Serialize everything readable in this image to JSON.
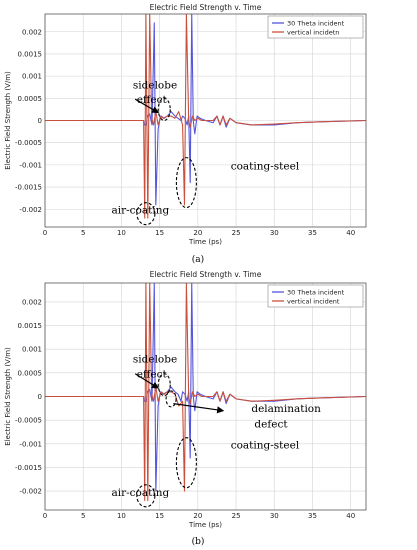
{
  "chart_data": [
    {
      "type": "line",
      "title": "Electric Field Strength v. Time",
      "xlabel": "Time (ps)",
      "ylabel": "Electric Field Strength (V/m)",
      "xlim": [
        0,
        42
      ],
      "ylim": [
        -0.0024,
        0.0024
      ],
      "xticks": [
        0,
        5,
        10,
        15,
        20,
        25,
        30,
        35,
        40
      ],
      "yticks": [
        0.002,
        0.0015,
        0.001,
        0.0005,
        0,
        -0.0005,
        -0.001,
        -0.0015,
        -0.002
      ],
      "ytick_labels": [
        "0.002",
        "0.0015",
        "0.001",
        "0.0005",
        "0",
        "-0.0005",
        "-0.001",
        "-0.0015",
        "-0.002"
      ],
      "grid": true,
      "legend_position": "top-right",
      "legend": [
        "30 Theta incident",
        "vertical incidetn"
      ],
      "series": [
        {
          "name": "30 Theta incident",
          "color": "#5555dd",
          "x": [
            0,
            12.9,
            13.0,
            13.25,
            13.4,
            13.7,
            14.0,
            14.3,
            14.5,
            14.8,
            15.1,
            15.5,
            16.0,
            16.5,
            17.0,
            17.4,
            17.8,
            18.0,
            18.3,
            18.6,
            18.8,
            19.0,
            19.2,
            19.4,
            19.6,
            19.9,
            20.3,
            21.0,
            22.0,
            22.5,
            22.9,
            23.3,
            23.7,
            24.2,
            25,
            27,
            30,
            33,
            36,
            42
          ],
          "y": [
            0,
            0,
            -0.0001,
            -0.0001,
            0.0001,
            0.00015,
            -0.0001,
            0.0022,
            -0.0019,
            -0.0002,
            0.0001,
            5e-05,
            0.0001,
            0.0002,
            0.0001,
            5e-05,
            0,
            0.0001,
            5e-05,
            -0.0001,
            0.0001,
            -0.0014,
            0.0024,
            0.0,
            -0.0003,
            0.0001,
            5e-05,
            0,
            -5e-05,
            0.0001,
            -0.0001,
            0.0001,
            -0.00015,
            5e-05,
            -5e-05,
            -0.0001,
            -0.0001,
            -5e-05,
            -3e-05,
            0
          ]
        },
        {
          "name": "vertical incidetn",
          "color": "#c8503c",
          "x": [
            0,
            12.9,
            13.05,
            13.2,
            13.45,
            13.7,
            13.95,
            14.2,
            14.5,
            14.8,
            15.2,
            15.6,
            16.0,
            16.5,
            17.0,
            17.5,
            18.0,
            18.25,
            18.5,
            18.8,
            19.0,
            19.3,
            19.6,
            20.0,
            20.5,
            21.0,
            22.0,
            22.5,
            22.9,
            23.3,
            23.7,
            24.2,
            25,
            27,
            30,
            33,
            36,
            42
          ],
          "y": [
            0,
            0,
            -0.0022,
            0.0024,
            -0.0022,
            0.0024,
            5e-05,
            -0.0001,
            0.0002,
            -0.0001,
            0.0001,
            5e-05,
            0.0001,
            0.0001,
            5e-05,
            0.0002,
            -0.0001,
            -0.0019,
            0.0024,
            0.0,
            -0.00015,
            0.0001,
            0.0,
            5e-05,
            0,
            0,
            0,
            0.0001,
            -0.0001,
            0.0001,
            -0.0001,
            5e-05,
            -5e-05,
            -0.0001,
            -8e-05,
            -5e-05,
            -3e-05,
            0
          ]
        }
      ],
      "annotations": [
        {
          "text": "sidelobe",
          "x": 11.5,
          "y": 0.00072
        },
        {
          "text": "effect",
          "x": 12.0,
          "y": 0.0004
        },
        {
          "text": "coating-steel",
          "x": 24.3,
          "y": -0.0011
        },
        {
          "text": "air-coating",
          "x": 8.7,
          "y": -0.0021
        }
      ],
      "caption": "(a)"
    },
    {
      "type": "line",
      "title": "Electric Field Strength v. Time",
      "xlabel": "Time (ps)",
      "ylabel": "Electric Field Strength (V/m)",
      "xlim": [
        0,
        42
      ],
      "ylim": [
        -0.0024,
        0.0024
      ],
      "xticks": [
        0,
        5,
        10,
        15,
        20,
        25,
        30,
        35,
        40
      ],
      "yticks": [
        0.002,
        0.0015,
        0.001,
        0.0005,
        0,
        -0.0005,
        -0.001,
        -0.0015,
        -0.002
      ],
      "ytick_labels": [
        "0.002",
        "0.0015",
        "0.001",
        "0.0005",
        "0",
        "-0.0005",
        "-0.001",
        "-0.0015",
        "-0.002"
      ],
      "grid": true,
      "legend_position": "top-right",
      "legend": [
        "30 Theta incident",
        "vertical incident"
      ],
      "series": [
        {
          "name": "30 Theta incident",
          "color": "#5555dd",
          "x": [
            0,
            12.9,
            13.0,
            13.25,
            13.4,
            13.7,
            14.0,
            14.3,
            14.5,
            14.8,
            15.1,
            15.5,
            16.0,
            16.5,
            17.0,
            17.4,
            17.8,
            18.0,
            18.3,
            18.6,
            18.8,
            19.0,
            19.2,
            19.4,
            19.6,
            19.9,
            20.3,
            21.0,
            22.0,
            22.5,
            22.9,
            23.3,
            23.7,
            24.2,
            25,
            27,
            30,
            33,
            36,
            42
          ],
          "y": [
            0,
            0,
            -0.0001,
            -0.0001,
            0.0001,
            0.00015,
            -0.0001,
            0.0024,
            -0.002,
            -0.0002,
            0.0001,
            5e-05,
            0.0001,
            0.0002,
            0.0001,
            5e-05,
            -0.0001,
            0.0001,
            5e-05,
            -0.0001,
            0.0001,
            -0.0013,
            0.0024,
            0.0,
            -0.0003,
            0.0001,
            5e-05,
            0,
            -5e-05,
            0.0001,
            -0.0001,
            0.0001,
            -0.00015,
            5e-05,
            -5e-05,
            -0.0001,
            -0.0001,
            -5e-05,
            -3e-05,
            0
          ]
        },
        {
          "name": "vertical incident",
          "color": "#c8503c",
          "x": [
            0,
            12.9,
            13.05,
            13.2,
            13.45,
            13.7,
            13.95,
            14.2,
            14.5,
            14.8,
            15.2,
            15.6,
            16.0,
            16.5,
            17.0,
            17.5,
            18.0,
            18.25,
            18.5,
            18.8,
            19.0,
            19.3,
            19.6,
            20.0,
            20.5,
            21.0,
            22.0,
            22.5,
            22.9,
            23.3,
            23.7,
            24.2,
            25,
            27,
            30,
            33,
            36,
            42
          ],
          "y": [
            0,
            0,
            -0.0022,
            0.0024,
            -0.0022,
            0.0024,
            5e-05,
            -0.0001,
            0.0002,
            -0.0001,
            0.0001,
            5e-05,
            0.0001,
            0.0001,
            5e-05,
            -0.0002,
            -0.0001,
            -0.002,
            0.0024,
            0.0,
            -0.00015,
            0.0001,
            0.0,
            5e-05,
            0,
            0,
            0,
            0.0001,
            -0.0001,
            0.0001,
            -0.0001,
            5e-05,
            -5e-05,
            -0.0001,
            -8e-05,
            -5e-05,
            -3e-05,
            0
          ]
        }
      ],
      "annotations": [
        {
          "text": "sidelobe",
          "x": 11.5,
          "y": 0.00072
        },
        {
          "text": "effect",
          "x": 12.0,
          "y": 0.0004
        },
        {
          "text": "delamination",
          "x": 27.0,
          "y": -0.00033
        },
        {
          "text": "defect",
          "x": 27.4,
          "y": -0.00066
        },
        {
          "text": "coating-steel",
          "x": 24.3,
          "y": -0.0011
        },
        {
          "text": "air-coating",
          "x": 8.7,
          "y": -0.0021
        }
      ],
      "caption": "(b)"
    }
  ]
}
